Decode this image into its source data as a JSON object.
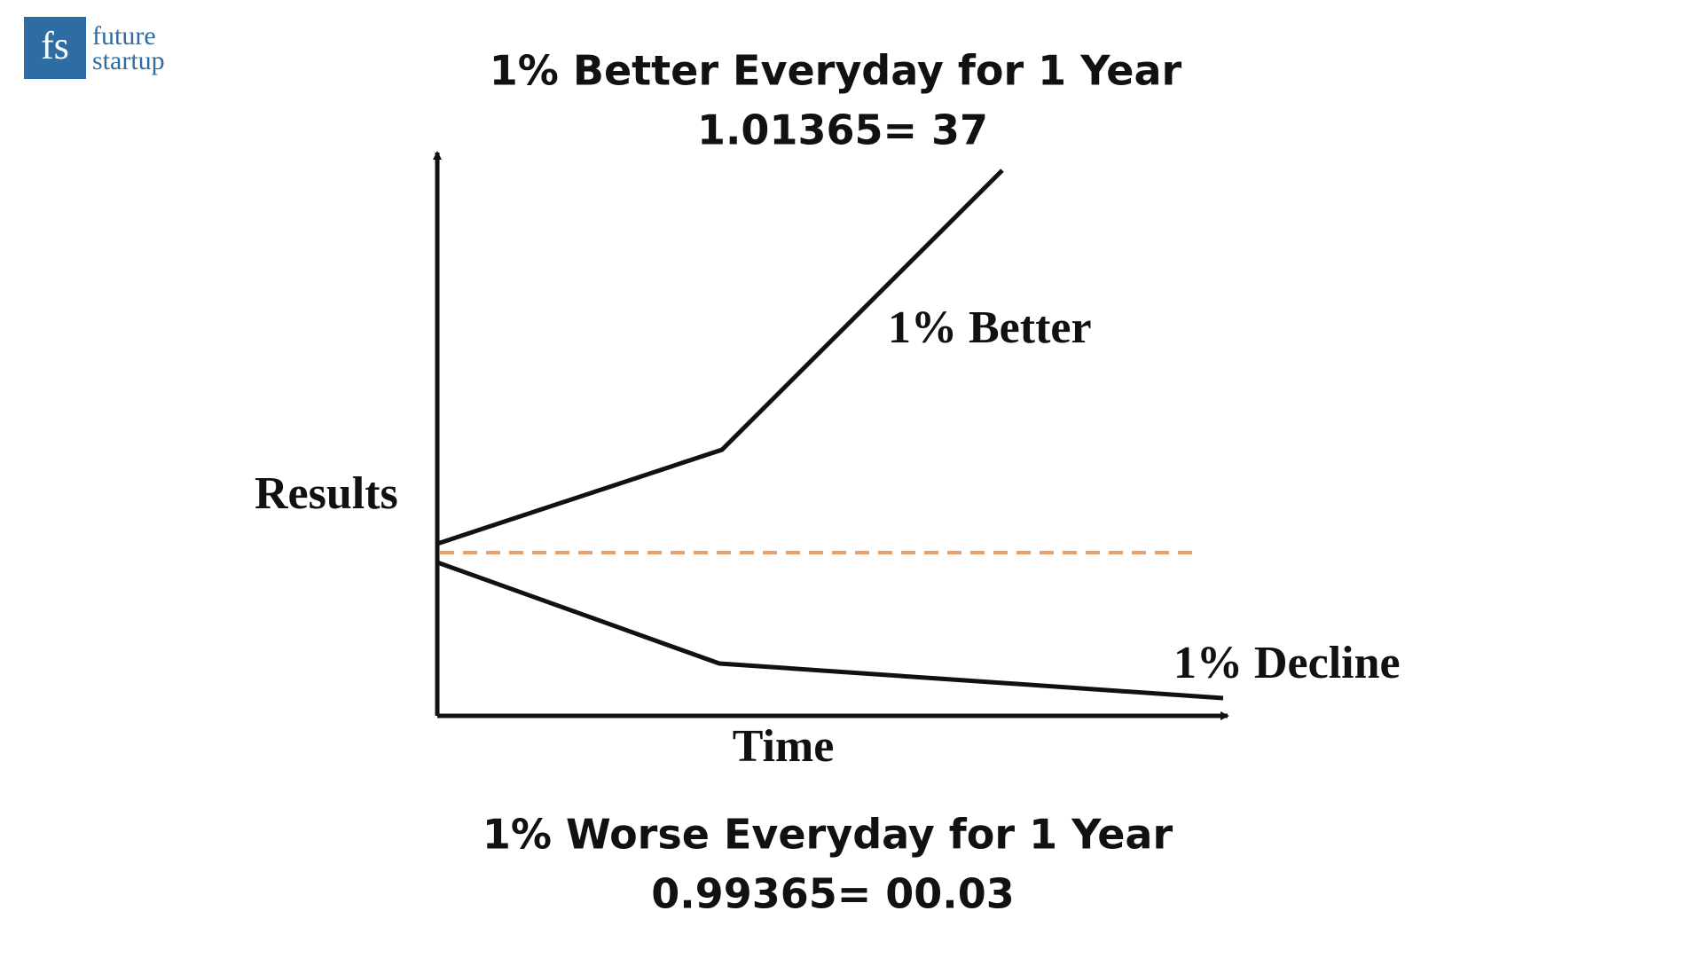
{
  "logo": {
    "mark": "fs",
    "line1": "future",
    "line2": "startup"
  },
  "top": {
    "title": "1% Better Everyday for 1 Year",
    "formula": "1.01365= 37"
  },
  "labels": {
    "y_axis": "Results",
    "x_axis": "Time",
    "better": "1% Better",
    "decline": "1% Decline"
  },
  "bottom": {
    "title": "1% Worse Everyday for 1 Year",
    "formula": "0.99365= 00.03"
  }
}
